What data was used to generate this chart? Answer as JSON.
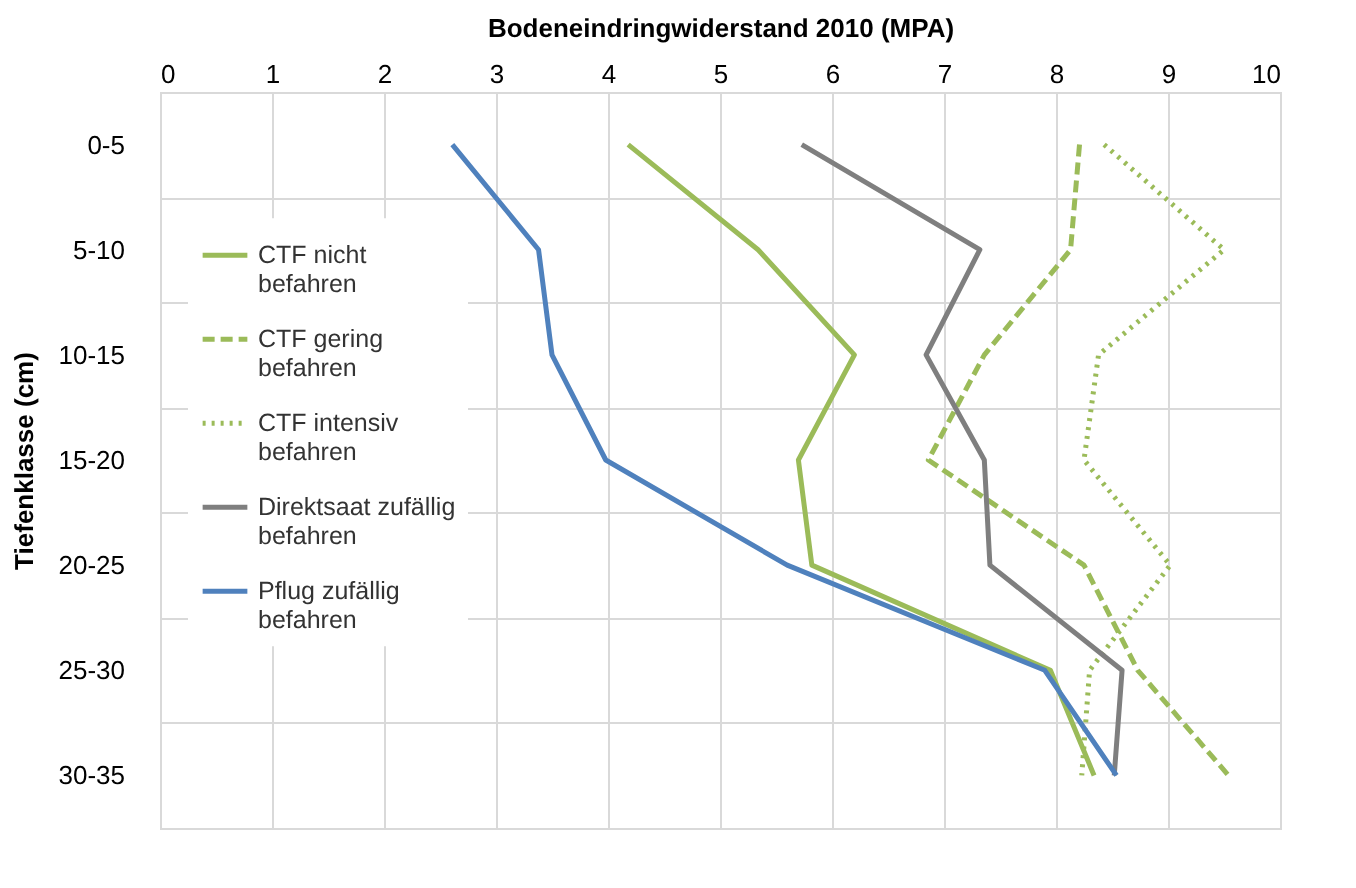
{
  "chart_data": {
    "type": "line",
    "orientation": "horizontal",
    "xlabel": "Bodeneindringwiderstand 2010 (MPA)",
    "ylabel": "Tiefenklasse (cm)",
    "categories": [
      "0-5",
      "5-10",
      "10-15",
      "15-20",
      "20-25",
      "25-30",
      "30-35"
    ],
    "xlim": [
      0,
      10
    ],
    "xticks": [
      0,
      1,
      2,
      3,
      4,
      5,
      6,
      7,
      8,
      9,
      10
    ],
    "grid": true,
    "legend": "left",
    "series": [
      {
        "name": "CTF nicht befahren",
        "color": "#9bbb59",
        "line_style": "solid",
        "values": [
          4.18,
          5.34,
          6.2,
          5.7,
          5.82,
          7.95,
          8.34
        ]
      },
      {
        "name": "CTF gering befahren",
        "color": "#9bbb59",
        "line_style": "dashed",
        "values": [
          8.21,
          8.13,
          7.36,
          6.86,
          8.25,
          8.73,
          9.54
        ]
      },
      {
        "name": "CTF intensiv befahren",
        "color": "#9bbb59",
        "line_style": "dotted",
        "values": [
          8.43,
          9.5,
          8.38,
          8.25,
          9.02,
          8.3,
          8.23
        ]
      },
      {
        "name": "Direktsaat zufällig befahren",
        "color": "#7f7f7f",
        "line_style": "solid",
        "values": [
          5.73,
          7.32,
          6.84,
          7.36,
          7.41,
          8.59,
          8.52
        ]
      },
      {
        "name": "Pflug zufällig befahren",
        "color": "#4f81bd",
        "line_style": "solid",
        "values": [
          2.61,
          3.38,
          3.5,
          3.98,
          5.6,
          7.9,
          8.54
        ]
      }
    ]
  }
}
